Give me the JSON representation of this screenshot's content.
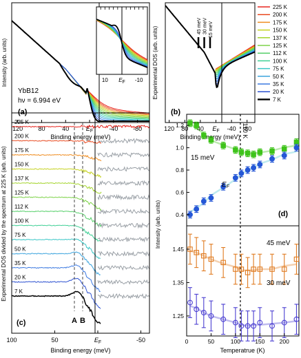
{
  "chart_data": [
    {
      "id": "a",
      "type": "line",
      "panel_label": "(a)",
      "xlabel": "Binding energy (meV)",
      "ylabel": "Intensity (arb. units)",
      "xlim": [
        130,
        -100
      ],
      "x_ticks": [
        "120",
        "80",
        "40",
        "E_F",
        "-40",
        "-80"
      ],
      "annotations": [
        "YbB12",
        "hν = 6.994 eV"
      ],
      "inset": {
        "x_ticks": [
          "10",
          "E_F",
          "-10"
        ],
        "xlim": [
          15,
          -15
        ]
      },
      "temperatures": [
        "225 K",
        "200 K",
        "175 K",
        "150 K",
        "137 K",
        "125 K",
        "112 K",
        "100 K",
        "75 K",
        "50 K",
        "35 K",
        "20 K",
        "7 K"
      ]
    },
    {
      "id": "b",
      "type": "line",
      "panel_label": "(b)",
      "xlabel": "Binding energy (meV)",
      "ylabel": "Experimental DOS (arb. units)",
      "xlim": [
        130,
        -100
      ],
      "x_ticks": [
        "120",
        "80",
        "40",
        "E_F",
        "-40",
        "-80"
      ],
      "markers": [
        "45 meV",
        "30 meV",
        "15 meV"
      ],
      "legend_position": "right",
      "legend": [
        {
          "label": "225 K",
          "color": "#e8251f"
        },
        {
          "label": "200 K",
          "color": "#e8491f"
        },
        {
          "label": "175 K",
          "color": "#ef8c1f"
        },
        {
          "label": "150 K",
          "color": "#c5d21f"
        },
        {
          "label": "137 K",
          "color": "#a3d42a"
        },
        {
          "label": "125 K",
          "color": "#7fd34a"
        },
        {
          "label": "112 K",
          "color": "#56cf6a"
        },
        {
          "label": "100 K",
          "color": "#3fcf95"
        },
        {
          "label": "75 K",
          "color": "#39c6c6"
        },
        {
          "label": "50 K",
          "color": "#3aa3dd"
        },
        {
          "label": "35 K",
          "color": "#3a78e0"
        },
        {
          "label": "20 K",
          "color": "#2a4fd0"
        },
        {
          "label": "7 K",
          "color": "#000000"
        }
      ]
    },
    {
      "id": "c",
      "type": "line",
      "panel_label": "(c)",
      "xlabel": "Binding energy (meV)",
      "ylabel": "Experimental DOS divided by the spectrum at 225 K (arb. units)",
      "xlim": [
        100,
        -60
      ],
      "x_ticks": [
        "100",
        "50",
        "E_F",
        "-50"
      ],
      "vlines_labels": [
        "A",
        "B"
      ],
      "series_labels": [
        "225 K",
        "200 K",
        "175 K",
        "150 K",
        "137 K",
        "125 K",
        "112 K",
        "100 K",
        "75 K",
        "50 K",
        "35 K",
        "20 K",
        "7 K"
      ]
    },
    {
      "id": "d",
      "type": "scatter",
      "panel_label": "(d)",
      "xlabel": "Temperatrue (K)",
      "ylabel": "Intensity (arb. units)",
      "xlim": [
        0,
        230
      ],
      "vline_label": "110 K",
      "x_ticks": [
        "0",
        "50",
        "100",
        "150",
        "200"
      ],
      "top": {
        "ylim": [
          0.3,
          1.3
        ],
        "y_ticks": [
          "0.4",
          "0.6",
          "0.8",
          "1.0",
          "1.2"
        ],
        "series": [
          {
            "name": "15 meV",
            "color": "#3ec31a",
            "x": [
              7,
              20,
              35,
              50,
              75,
              100,
              112,
              125,
              137,
              150,
              175,
              200,
              225
            ],
            "y": [
              1.22,
              1.2,
              1.11,
              1.07,
              1.02,
              0.98,
              0.96,
              0.95,
              0.94,
              0.96,
              0.97,
              0.99,
              1.05
            ],
            "err": [
              0.03,
              0.03,
              0.03,
              0.03,
              0.03,
              0.03,
              0.03,
              0.03,
              0.03,
              0.03,
              0.03,
              0.03,
              0.03
            ]
          },
          {
            "name": "E_F",
            "color": "#2557d6",
            "x": [
              7,
              20,
              35,
              50,
              75,
              100,
              112,
              125,
              137,
              150,
              175,
              200,
              225
            ],
            "y": [
              0.4,
              0.45,
              0.52,
              0.55,
              0.65,
              0.73,
              0.77,
              0.8,
              0.82,
              0.85,
              0.9,
              0.93,
              1.0
            ],
            "err": [
              0.03,
              0.03,
              0.03,
              0.03,
              0.03,
              0.03,
              0.03,
              0.03,
              0.03,
              0.03,
              0.03,
              0.03,
              0.03
            ]
          }
        ]
      },
      "bottom": {
        "ylim": [
          1.19,
          1.52
        ],
        "y_ticks": [
          "1.25",
          "1.35",
          "1.45"
        ],
        "series": [
          {
            "name": "45 meV",
            "color": "#e07a1f",
            "x": [
              7,
              20,
              35,
              50,
              75,
              100,
              112,
              125,
              137,
              150,
              175,
              200,
              225
            ],
            "y": [
              1.45,
              1.44,
              1.43,
              1.42,
              1.41,
              1.39,
              1.39,
              1.38,
              1.39,
              1.39,
              1.39,
              1.39,
              1.42
            ],
            "err": [
              0.045,
              0.045,
              0.045,
              0.045,
              0.045,
              0.045,
              0.045,
              0.045,
              0.045,
              0.045,
              0.045,
              0.045,
              0.045
            ]
          },
          {
            "name": "30 meV",
            "color": "#4a3ed1",
            "x": [
              7,
              20,
              35,
              50,
              75,
              100,
              112,
              125,
              137,
              150,
              175,
              200,
              225
            ],
            "y": [
              1.29,
              1.27,
              1.26,
              1.25,
              1.24,
              1.23,
              1.22,
              1.22,
              1.22,
              1.23,
              1.22,
              1.23,
              1.24
            ],
            "err": [
              0.045,
              0.045,
              0.045,
              0.045,
              0.045,
              0.045,
              0.045,
              0.045,
              0.045,
              0.045,
              0.045,
              0.045,
              0.045
            ]
          }
        ]
      }
    }
  ]
}
